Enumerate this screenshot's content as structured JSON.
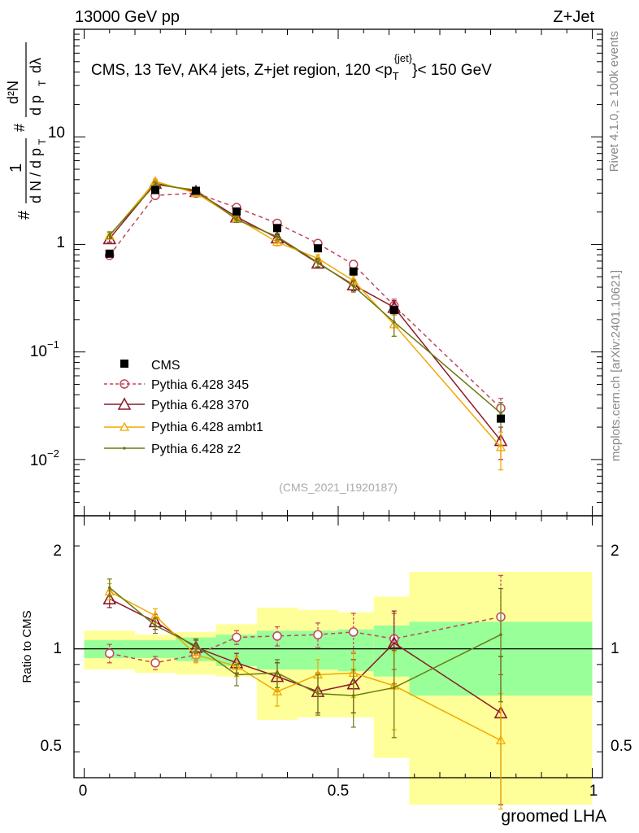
{
  "header": {
    "left": "13000 GeV pp",
    "right": "Z+Jet"
  },
  "side_labels": {
    "rivet": "Rivet 4.1.0, ≥ 100k events",
    "mcplots": "mcplots.cern.ch [arXiv:2401.10621]"
  },
  "colors": {
    "cms": "#000000",
    "p345": "#c0475b",
    "p370": "#8b1a2a",
    "ambt1": "#f0a800",
    "z2": "#6b7a12",
    "band_inner": "#99ff99",
    "band_outer": "#ffff99"
  },
  "chart_data": [
    {
      "type": "line",
      "panel": "main",
      "title": "CMS, 13 TeV, AK4 jets, Z+jet region, 120 <p_T^{jet}< 150 GeV",
      "title_parts": {
        "main": "CMS, 13 TeV, AK4 jets, Z+jet region, 120 <p",
        "sup": "{jet}",
        "sub": "T",
        "tail": "}< 150 GeV"
      },
      "ylabel": "(1/dN/dp_T) d²N/dp_T dλ",
      "ylabel_parts": {
        "hash": "#",
        "one": "1",
        "denom": "d N / d p",
        "t": "T",
        "num": "d²N",
        "frac_denom": "d p",
        "lam": "dλ"
      },
      "yscale": "log",
      "ylim": [
        0.003,
        100
      ],
      "xlim": [
        -0.02,
        1.02
      ],
      "yticks": [
        {
          "value": 0.01,
          "base": "10",
          "exp": "−2"
        },
        {
          "value": 0.1,
          "base": "10",
          "exp": "−1"
        },
        {
          "value": 1,
          "base": "1",
          "exp": ""
        },
        {
          "value": 10,
          "base": "10",
          "exp": ""
        }
      ],
      "watermark": "(CMS_2021_I1920187)",
      "series": [
        {
          "name": "CMS",
          "key": "cms",
          "x": [
            0.05,
            0.14,
            0.22,
            0.3,
            0.38,
            0.46,
            0.53,
            0.61,
            0.82
          ],
          "y": [
            0.82,
            3.2,
            3.15,
            2.02,
            1.42,
            0.92,
            0.56,
            0.245,
            0.024
          ]
        },
        {
          "name": "Pythia 6.428 345",
          "key": "p345",
          "x": [
            0.05,
            0.14,
            0.22,
            0.3,
            0.38,
            0.46,
            0.53,
            0.61,
            0.82
          ],
          "y": [
            0.79,
            2.85,
            3.0,
            2.2,
            1.57,
            1.02,
            0.65,
            0.27,
            0.03
          ],
          "err": [
            0.06,
            0.15,
            0.12,
            0.1,
            0.08,
            0.07,
            0.06,
            0.04,
            0.007
          ]
        },
        {
          "name": "Pythia 6.428 370",
          "key": "p370",
          "x": [
            0.05,
            0.14,
            0.22,
            0.3,
            0.38,
            0.46,
            0.53,
            0.61,
            0.82
          ],
          "y": [
            1.13,
            3.7,
            3.1,
            1.8,
            1.15,
            0.67,
            0.42,
            0.26,
            0.015
          ],
          "err": [
            0.08,
            0.18,
            0.12,
            0.1,
            0.08,
            0.06,
            0.05,
            0.04,
            0.005
          ]
        },
        {
          "name": "Pythia 6.428 ambt1",
          "key": "ambt1",
          "x": [
            0.05,
            0.14,
            0.22,
            0.3,
            0.38,
            0.46,
            0.53,
            0.61,
            0.82
          ],
          "y": [
            1.2,
            3.85,
            3.0,
            1.75,
            1.05,
            0.74,
            0.46,
            0.18,
            0.013
          ],
          "err": [
            0.08,
            0.2,
            0.12,
            0.1,
            0.08,
            0.06,
            0.05,
            0.04,
            0.005
          ]
        },
        {
          "name": "Pythia 6.428 z2",
          "key": "z2",
          "x": [
            0.05,
            0.14,
            0.22,
            0.3,
            0.38,
            0.46,
            0.53,
            0.61,
            0.82
          ],
          "y": [
            1.22,
            3.6,
            3.2,
            1.7,
            1.18,
            0.68,
            0.41,
            0.19,
            0.027
          ],
          "err": [
            0.09,
            0.18,
            0.12,
            0.1,
            0.08,
            0.06,
            0.05,
            0.05,
            0.007
          ]
        }
      ]
    },
    {
      "type": "line",
      "panel": "ratio",
      "ylabel": "Ratio to CMS",
      "xlabel": "groomed LHA",
      "yscale": "log",
      "ylim": [
        0.42,
        2.45
      ],
      "xlim": [
        -0.02,
        1.02
      ],
      "yticks": [
        {
          "value": 0.5,
          "label": "0.5"
        },
        {
          "value": 1,
          "label": "1"
        },
        {
          "value": 2,
          "label": "2"
        }
      ],
      "xticks": [
        {
          "value": 0,
          "label": "0"
        },
        {
          "value": 0.5,
          "label": "0.5"
        },
        {
          "value": 1,
          "label": "1"
        }
      ],
      "bands": {
        "edges": [
          0.0,
          0.1,
          0.18,
          0.26,
          0.34,
          0.42,
          0.5,
          0.57,
          0.64,
          1.0
        ],
        "inner_lo": [
          0.94,
          0.94,
          0.92,
          0.89,
          0.87,
          0.87,
          0.86,
          0.83,
          0.73
        ],
        "inner_hi": [
          1.06,
          1.06,
          1.08,
          1.1,
          1.13,
          1.13,
          1.14,
          1.17,
          1.2
        ],
        "outer_lo": [
          0.87,
          0.85,
          0.84,
          0.83,
          0.62,
          0.63,
          0.63,
          0.48,
          0.35
        ],
        "outer_hi": [
          1.13,
          1.1,
          1.12,
          1.18,
          1.32,
          1.3,
          1.28,
          1.42,
          1.68
        ]
      },
      "series": [
        {
          "name": "Pythia 6.428 345",
          "key": "p345",
          "x": [
            0.05,
            0.14,
            0.22,
            0.3,
            0.38,
            0.46,
            0.53,
            0.61,
            0.82
          ],
          "y": [
            0.97,
            0.91,
            0.96,
            1.08,
            1.09,
            1.1,
            1.12,
            1.07,
            1.24
          ],
          "err": [
            0.06,
            0.04,
            0.04,
            0.05,
            0.07,
            0.09,
            0.15,
            0.2,
            0.4
          ]
        },
        {
          "name": "Pythia 6.428 370",
          "key": "p370",
          "x": [
            0.05,
            0.14,
            0.22,
            0.3,
            0.38,
            0.46,
            0.53,
            0.61,
            0.82
          ],
          "y": [
            1.4,
            1.2,
            1.01,
            0.91,
            0.83,
            0.75,
            0.79,
            1.04,
            0.65
          ],
          "err": [
            0.08,
            0.06,
            0.05,
            0.06,
            0.08,
            0.1,
            0.14,
            0.25,
            0.3
          ]
        },
        {
          "name": "Pythia 6.428 ambt1",
          "key": "ambt1",
          "x": [
            0.05,
            0.14,
            0.22,
            0.3,
            0.38,
            0.46,
            0.53,
            0.61,
            0.82
          ],
          "y": [
            1.47,
            1.25,
            0.96,
            0.89,
            0.75,
            0.84,
            0.85,
            0.78,
            0.54
          ],
          "err": [
            0.08,
            0.06,
            0.05,
            0.06,
            0.07,
            0.09,
            0.13,
            0.2,
            0.2
          ]
        },
        {
          "name": "Pythia 6.428 z2",
          "key": "z2",
          "x": [
            0.05,
            0.14,
            0.22,
            0.3,
            0.38,
            0.46,
            0.53,
            0.61,
            0.82
          ],
          "y": [
            1.51,
            1.17,
            1.02,
            0.84,
            0.85,
            0.74,
            0.73,
            0.77,
            1.1
          ],
          "err": [
            0.09,
            0.06,
            0.05,
            0.06,
            0.08,
            0.1,
            0.14,
            0.22,
            0.4
          ]
        }
      ]
    }
  ]
}
